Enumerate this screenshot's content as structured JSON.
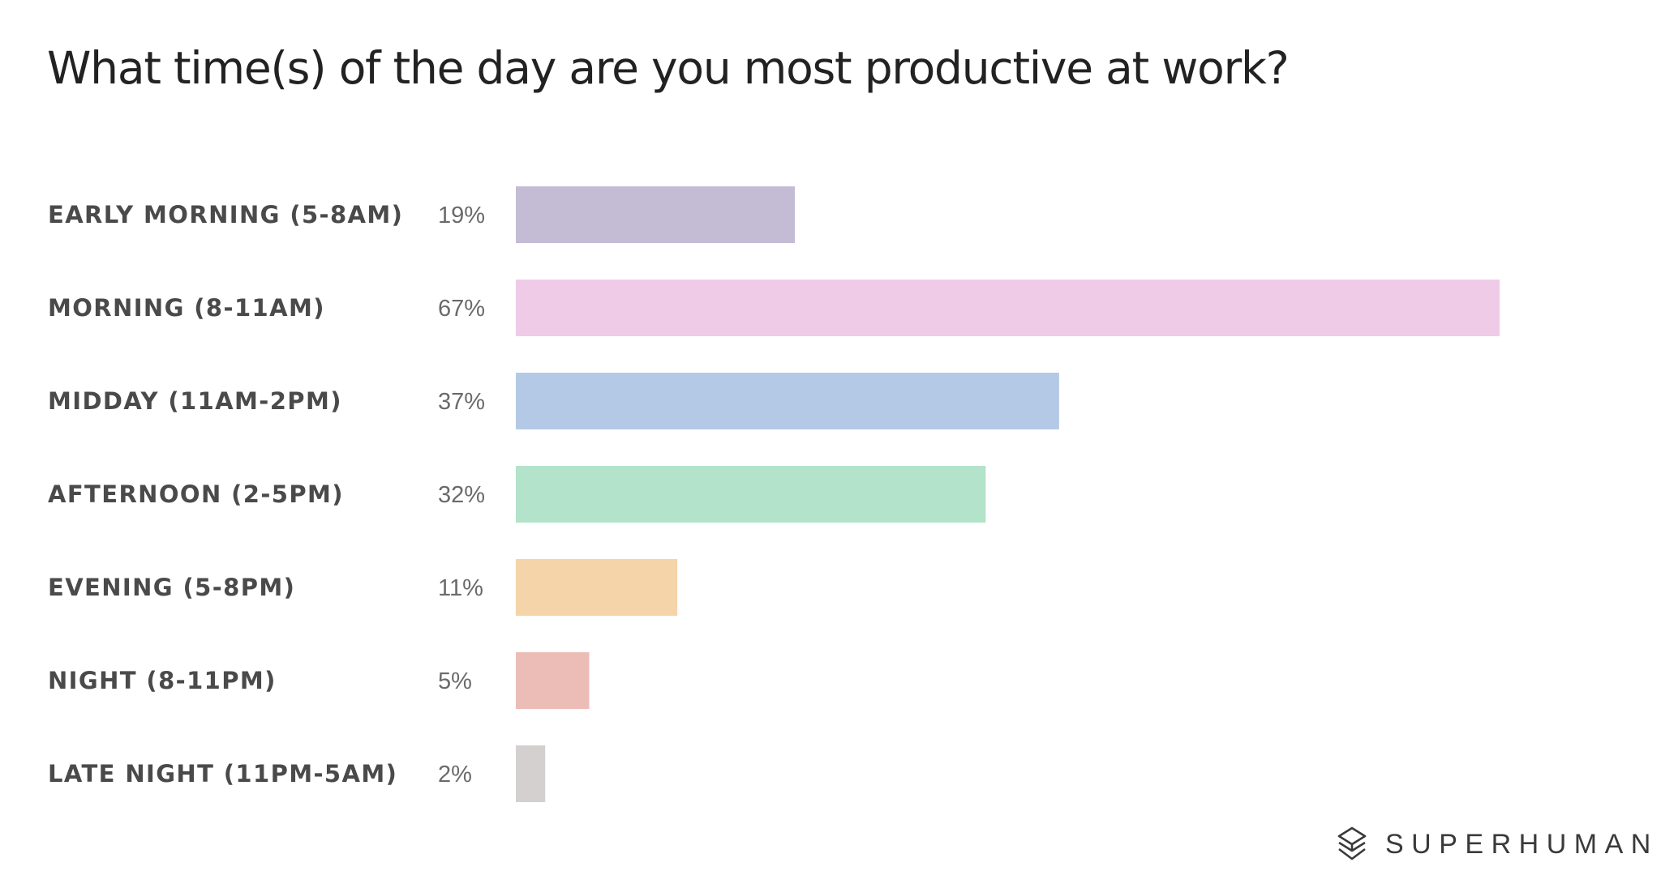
{
  "chart_data": {
    "type": "bar",
    "orientation": "horizontal",
    "title": "What time(s) of the day are you most productive at work?",
    "categories": [
      "EARLY MORNING (5-8AM)",
      "MORNING (8-11AM)",
      "MIDDAY (11AM-2PM)",
      "AFTERNOON (2-5PM)",
      "EVENING (5-8PM)",
      "NIGHT (8-11PM)",
      "LATE NIGHT (11PM-5AM)"
    ],
    "values": [
      19,
      67,
      37,
      32,
      11,
      5,
      2
    ],
    "value_labels": [
      "19%",
      "67%",
      "37%",
      "32%",
      "11%",
      "5%",
      "2%"
    ],
    "unit": "%",
    "colors": [
      "#c4bbd4",
      "#efcbe8",
      "#b4c9e6",
      "#b3e3ca",
      "#f5d4aa",
      "#ecbcb7",
      "#d3d0cf"
    ],
    "xlim": [
      0,
      67
    ],
    "grid": false
  },
  "brand": {
    "name": "SUPERHUMAN",
    "icon": "superhuman-logo-icon"
  }
}
